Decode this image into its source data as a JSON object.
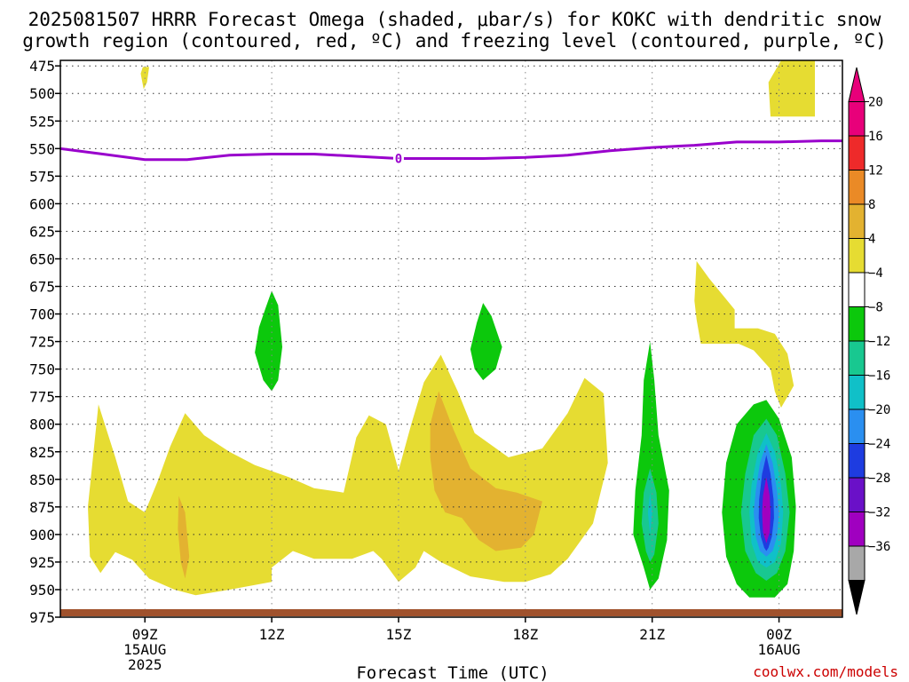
{
  "title": {
    "line1": "2025081507 HRRR Forecast Omega (shaded, μbar/s) for KOKC with dendritic snow",
    "line2": "growth region (contoured, red, ºC) and freezing level (contoured, purple, ºC)"
  },
  "credit": "coolwx.com/models",
  "colors": {
    "freezing_line": "#9900cc",
    "ground": "#a0522d",
    "credit": "#cc0000"
  },
  "chart_data": {
    "type": "contour",
    "title": "2025081507 HRRR Forecast Omega (shaded, μbar/s) for KOKC with dendritic snow growth region (contoured, red, ºC) and freezing level (contoured, purple, ºC)",
    "xlabel": "Forecast Time (UTC)",
    "ylabel": "",
    "xlim": [
      7,
      25.5
    ],
    "ylim": [
      975,
      470
    ],
    "x_ticks": [
      {
        "x": 9,
        "label": "09Z",
        "sub1": "15AUG",
        "sub2": "2025"
      },
      {
        "x": 12,
        "label": "12Z",
        "sub1": "",
        "sub2": ""
      },
      {
        "x": 15,
        "label": "15Z",
        "sub1": "",
        "sub2": ""
      },
      {
        "x": 18,
        "label": "18Z",
        "sub1": "",
        "sub2": ""
      },
      {
        "x": 21,
        "label": "21Z",
        "sub1": "",
        "sub2": ""
      },
      {
        "x": 24,
        "label": "00Z",
        "sub1": "16AUG",
        "sub2": ""
      }
    ],
    "y_ticks": [
      475,
      500,
      525,
      550,
      575,
      600,
      625,
      650,
      675,
      700,
      725,
      750,
      775,
      800,
      825,
      850,
      875,
      900,
      925,
      950,
      975
    ],
    "grid": true,
    "colorbar": {
      "labels": [
        "20",
        "16",
        "12",
        "8",
        "4",
        "−4",
        "−8",
        "−12",
        "−16",
        "−20",
        "−24",
        "−28",
        "−32",
        "−36"
      ],
      "bins": [
        {
          "lo": 20,
          "hi": 24,
          "color": "#e8007a"
        },
        {
          "lo": 16,
          "hi": 20,
          "color": "#ee2a2a"
        },
        {
          "lo": 12,
          "hi": 16,
          "color": "#ea8a26"
        },
        {
          "lo": 8,
          "hi": 12,
          "color": "#e3b230"
        },
        {
          "lo": 4,
          "hi": 8,
          "color": "#e6dc32"
        },
        {
          "lo": -4,
          "hi": 4,
          "color": "#ffffff"
        },
        {
          "lo": -8,
          "hi": -4,
          "color": "#0cc80c"
        },
        {
          "lo": -12,
          "hi": -8,
          "color": "#18c890"
        },
        {
          "lo": -16,
          "hi": -12,
          "color": "#10c0c8"
        },
        {
          "lo": -20,
          "hi": -16,
          "color": "#2a8ff0"
        },
        {
          "lo": -24,
          "hi": -20,
          "color": "#1e3ce0"
        },
        {
          "lo": -28,
          "hi": -24,
          "color": "#6a10c8"
        },
        {
          "lo": -32,
          "hi": -28,
          "color": "#a000c0"
        },
        {
          "lo": -36,
          "hi": -32,
          "color": "#a8a8a8"
        }
      ]
    },
    "freezing_level": {
      "label": "0",
      "label_x": 15,
      "points": [
        [
          7,
          550
        ],
        [
          8,
          555
        ],
        [
          9,
          560
        ],
        [
          10,
          560
        ],
        [
          11,
          556
        ],
        [
          12,
          555
        ],
        [
          13,
          555
        ],
        [
          14,
          557
        ],
        [
          15,
          559
        ],
        [
          16,
          559
        ],
        [
          17,
          559
        ],
        [
          18,
          558
        ],
        [
          19,
          556
        ],
        [
          20,
          552
        ],
        [
          21,
          549
        ],
        [
          22,
          547
        ],
        [
          23,
          544
        ],
        [
          24,
          544
        ],
        [
          25,
          543
        ],
        [
          25.5,
          543
        ]
      ]
    },
    "omega_regions": [
      {
        "value": 6,
        "points": [
          [
            8.95,
            476
          ],
          [
            9.1,
            476
          ],
          [
            9.05,
            490
          ],
          [
            8.97,
            496
          ],
          [
            8.9,
            482
          ]
        ]
      },
      {
        "value": 6,
        "points": [
          [
            24.05,
            470
          ],
          [
            24.85,
            470
          ],
          [
            24.85,
            521
          ],
          [
            23.8,
            521
          ],
          [
            23.75,
            490
          ]
        ]
      },
      {
        "value": 6,
        "points": [
          [
            22.05,
            652
          ],
          [
            22.35,
            668
          ],
          [
            22.95,
            696
          ],
          [
            22.95,
            713
          ],
          [
            23.5,
            713
          ],
          [
            23.9,
            718
          ],
          [
            24.2,
            736
          ],
          [
            24.35,
            765
          ],
          [
            24.05,
            785
          ],
          [
            23.9,
            770
          ],
          [
            23.8,
            750
          ],
          [
            23.4,
            733
          ],
          [
            23.05,
            727
          ],
          [
            22.15,
            727
          ],
          [
            22.05,
            705
          ],
          [
            22.0,
            688
          ]
        ]
      },
      {
        "value": 6,
        "points": [
          [
            7.65,
            875
          ],
          [
            7.9,
            782
          ],
          [
            8.3,
            830
          ],
          [
            8.6,
            870
          ],
          [
            9.0,
            880
          ],
          [
            9.3,
            852
          ],
          [
            9.6,
            820
          ],
          [
            9.95,
            790
          ],
          [
            10.4,
            810
          ],
          [
            11.0,
            825
          ],
          [
            11.6,
            837
          ],
          [
            12.4,
            848
          ],
          [
            13.0,
            858
          ],
          [
            13.7,
            862
          ],
          [
            14.0,
            812
          ],
          [
            14.3,
            792
          ],
          [
            14.7,
            800
          ],
          [
            15.0,
            842
          ],
          [
            15.3,
            800
          ],
          [
            15.6,
            762
          ],
          [
            16.0,
            737
          ],
          [
            16.4,
            770
          ],
          [
            16.8,
            808
          ],
          [
            17.6,
            830
          ],
          [
            18.4,
            822
          ],
          [
            19.0,
            790
          ],
          [
            19.4,
            758
          ],
          [
            19.85,
            772
          ],
          [
            19.95,
            835
          ],
          [
            19.6,
            890
          ],
          [
            19.0,
            922
          ],
          [
            18.6,
            936
          ],
          [
            18.0,
            943
          ],
          [
            17.5,
            943
          ],
          [
            16.7,
            938
          ],
          [
            16.0,
            925
          ],
          [
            15.6,
            915
          ],
          [
            15.4,
            930
          ],
          [
            15.0,
            943
          ],
          [
            14.6,
            922
          ],
          [
            14.4,
            915
          ],
          [
            13.9,
            922
          ],
          [
            13.0,
            922
          ],
          [
            12.5,
            915
          ],
          [
            12.0,
            930
          ],
          [
            12.0,
            943
          ],
          [
            11.0,
            950
          ],
          [
            10.2,
            955
          ],
          [
            9.7,
            950
          ],
          [
            9.4,
            945
          ],
          [
            9.1,
            940
          ],
          [
            8.7,
            923
          ],
          [
            8.3,
            916
          ],
          [
            7.95,
            935
          ],
          [
            7.7,
            920
          ]
        ]
      },
      {
        "value": 10,
        "points": [
          [
            9.8,
            865
          ],
          [
            9.95,
            880
          ],
          [
            10.05,
            920
          ],
          [
            9.95,
            940
          ],
          [
            9.85,
            925
          ],
          [
            9.78,
            895
          ]
        ]
      },
      {
        "value": 10,
        "points": [
          [
            15.75,
            800
          ],
          [
            15.95,
            770
          ],
          [
            16.3,
            805
          ],
          [
            16.7,
            840
          ],
          [
            17.3,
            858
          ],
          [
            17.8,
            862
          ],
          [
            18.4,
            870
          ],
          [
            18.2,
            900
          ],
          [
            17.9,
            912
          ],
          [
            17.3,
            915
          ],
          [
            16.9,
            905
          ],
          [
            16.5,
            885
          ],
          [
            16.1,
            880
          ],
          [
            15.85,
            860
          ],
          [
            15.75,
            830
          ]
        ]
      },
      {
        "value": -6,
        "points": [
          [
            12.0,
            679
          ],
          [
            12.15,
            692
          ],
          [
            12.25,
            730
          ],
          [
            12.15,
            760
          ],
          [
            12.0,
            770
          ],
          [
            11.8,
            760
          ],
          [
            11.6,
            735
          ],
          [
            11.7,
            712
          ],
          [
            11.85,
            695
          ]
        ]
      },
      {
        "value": -6,
        "points": [
          [
            17.0,
            690
          ],
          [
            17.2,
            702
          ],
          [
            17.45,
            730
          ],
          [
            17.3,
            750
          ],
          [
            17.0,
            760
          ],
          [
            16.8,
            750
          ],
          [
            16.7,
            732
          ],
          [
            16.85,
            708
          ]
        ]
      },
      {
        "value": -6,
        "points": [
          [
            20.95,
            725
          ],
          [
            21.05,
            760
          ],
          [
            21.15,
            810
          ],
          [
            21.4,
            860
          ],
          [
            21.35,
            905
          ],
          [
            21.15,
            940
          ],
          [
            20.95,
            950
          ],
          [
            20.8,
            930
          ],
          [
            20.55,
            900
          ],
          [
            20.6,
            860
          ],
          [
            20.75,
            810
          ],
          [
            20.8,
            760
          ]
        ]
      },
      {
        "value": -6,
        "points": [
          [
            23.7,
            778
          ],
          [
            24.0,
            795
          ],
          [
            24.3,
            830
          ],
          [
            24.4,
            875
          ],
          [
            24.35,
            915
          ],
          [
            24.2,
            945
          ],
          [
            23.9,
            957
          ],
          [
            23.3,
            957
          ],
          [
            23.0,
            945
          ],
          [
            22.75,
            920
          ],
          [
            22.65,
            880
          ],
          [
            22.75,
            835
          ],
          [
            23.0,
            800
          ],
          [
            23.4,
            782
          ]
        ]
      },
      {
        "value": -10,
        "points": [
          [
            20.95,
            840
          ],
          [
            21.1,
            862
          ],
          [
            21.15,
            890
          ],
          [
            21.05,
            918
          ],
          [
            20.95,
            925
          ],
          [
            20.85,
            915
          ],
          [
            20.75,
            890
          ],
          [
            20.8,
            862
          ]
        ]
      },
      {
        "value": -10,
        "points": [
          [
            23.7,
            795
          ],
          [
            23.95,
            810
          ],
          [
            24.15,
            845
          ],
          [
            24.25,
            880
          ],
          [
            24.15,
            915
          ],
          [
            23.95,
            935
          ],
          [
            23.7,
            942
          ],
          [
            23.45,
            935
          ],
          [
            23.2,
            915
          ],
          [
            23.1,
            880
          ],
          [
            23.2,
            845
          ],
          [
            23.4,
            810
          ]
        ]
      },
      {
        "value": -14,
        "points": [
          [
            20.95,
            862
          ],
          [
            21.0,
            880
          ],
          [
            20.95,
            900
          ],
          [
            20.9,
            880
          ]
        ]
      },
      {
        "value": -14,
        "points": [
          [
            23.7,
            808
          ],
          [
            23.9,
            825
          ],
          [
            24.05,
            855
          ],
          [
            24.1,
            880
          ],
          [
            24.05,
            908
          ],
          [
            23.9,
            925
          ],
          [
            23.7,
            930
          ],
          [
            23.5,
            925
          ],
          [
            23.35,
            908
          ],
          [
            23.3,
            880
          ],
          [
            23.35,
            855
          ],
          [
            23.5,
            825
          ]
        ]
      },
      {
        "value": -18,
        "points": [
          [
            23.7,
            818
          ],
          [
            23.85,
            835
          ],
          [
            23.95,
            860
          ],
          [
            24.0,
            880
          ],
          [
            23.95,
            902
          ],
          [
            23.85,
            915
          ],
          [
            23.7,
            920
          ],
          [
            23.55,
            915
          ],
          [
            23.45,
            902
          ],
          [
            23.4,
            880
          ],
          [
            23.45,
            860
          ],
          [
            23.55,
            835
          ]
        ]
      },
      {
        "value": -22,
        "points": [
          [
            23.7,
            828
          ],
          [
            23.8,
            845
          ],
          [
            23.87,
            868
          ],
          [
            23.88,
            885
          ],
          [
            23.83,
            902
          ],
          [
            23.75,
            912
          ],
          [
            23.7,
            915
          ],
          [
            23.65,
            912
          ],
          [
            23.57,
            902
          ],
          [
            23.52,
            885
          ],
          [
            23.53,
            868
          ],
          [
            23.6,
            845
          ]
        ]
      },
      {
        "value": -30,
        "points": [
          [
            23.7,
            848
          ],
          [
            23.78,
            865
          ],
          [
            23.8,
            880
          ],
          [
            23.78,
            898
          ],
          [
            23.7,
            908
          ],
          [
            23.62,
            898
          ],
          [
            23.6,
            880
          ],
          [
            23.62,
            865
          ]
        ]
      }
    ]
  }
}
